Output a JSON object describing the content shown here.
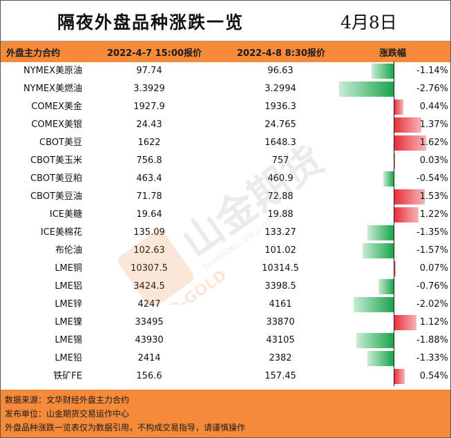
{
  "title": "隔夜外盘品种涨跌一览",
  "date": "4月8日",
  "header": {
    "col_name": "外盘主力合约",
    "col_p1": "2022-4-7 15:00报价",
    "col_p2": "2022-4-8 8:30报价",
    "col_pct": "涨跌幅"
  },
  "rows": [
    {
      "name": "NYMEX美原油",
      "p1": "97.74",
      "p2": "96.63",
      "pct": "-1.14%",
      "value": -1.14
    },
    {
      "name": "NYMEX美燃油",
      "p1": "3.3929",
      "p2": "3.2994",
      "pct": "-2.76%",
      "value": -2.76
    },
    {
      "name": "COMEX美金",
      "p1": "1927.9",
      "p2": "1936.3",
      "pct": "0.44%",
      "value": 0.44
    },
    {
      "name": "COMEX美银",
      "p1": "24.43",
      "p2": "24.765",
      "pct": "1.37%",
      "value": 1.37
    },
    {
      "name": "CBOT美豆",
      "p1": "1622",
      "p2": "1648.3",
      "pct": "1.62%",
      "value": 1.62
    },
    {
      "name": "CBOT美玉米",
      "p1": "756.8",
      "p2": "757",
      "pct": "0.03%",
      "value": 0.03
    },
    {
      "name": "CBOT美豆粕",
      "p1": "463.4",
      "p2": "460.9",
      "pct": "-0.54%",
      "value": -0.54
    },
    {
      "name": "CBOT美豆油",
      "p1": "71.78",
      "p2": "72.88",
      "pct": "1.53%",
      "value": 1.53
    },
    {
      "name": "ICE美糖",
      "p1": "19.64",
      "p2": "19.88",
      "pct": "1.22%",
      "value": 1.22
    },
    {
      "name": "ICE美棉花",
      "p1": "135.09",
      "p2": "133.27",
      "pct": "-1.35%",
      "value": -1.35
    },
    {
      "name": "布伦油",
      "p1": "102.63",
      "p2": "101.02",
      "pct": "-1.57%",
      "value": -1.57
    },
    {
      "name": "LME铜",
      "p1": "10307.5",
      "p2": "10314.5",
      "pct": "0.07%",
      "value": 0.07
    },
    {
      "name": "LME铝",
      "p1": "3424.5",
      "p2": "3398.5",
      "pct": "-0.76%",
      "value": -0.76
    },
    {
      "name": "LME锌",
      "p1": "4247",
      "p2": "4161",
      "pct": "-2.02%",
      "value": -2.02
    },
    {
      "name": "LME镍",
      "p1": "33495",
      "p2": "33870",
      "pct": "1.12%",
      "value": 1.12
    },
    {
      "name": "LME锡",
      "p1": "43930",
      "p2": "43105",
      "pct": "-1.88%",
      "value": -1.88
    },
    {
      "name": "LME铅",
      "p1": "2414",
      "p2": "2382",
      "pct": "-1.33%",
      "value": -1.33
    },
    {
      "name": "铁矿FE",
      "p1": "156.6",
      "p2": "157.45",
      "pct": "0.54%",
      "value": 0.54
    }
  ],
  "colors": {
    "header_bg": "#f58a3a",
    "up": "#e8303a",
    "down": "#1aa44b"
  },
  "watermark": {
    "brand": "山金期货",
    "en": "SHANDONG GOLD FUTURES",
    "logo_text": "SD-GOLD"
  },
  "footer": {
    "line1": "数据来源：文华财经外盘主力合约",
    "line2": "发布单位：山金期货交易运作中心",
    "line3": "外盘品种涨跌一览表仅为数据引用，不构成交易指导，请谨慎操作"
  }
}
